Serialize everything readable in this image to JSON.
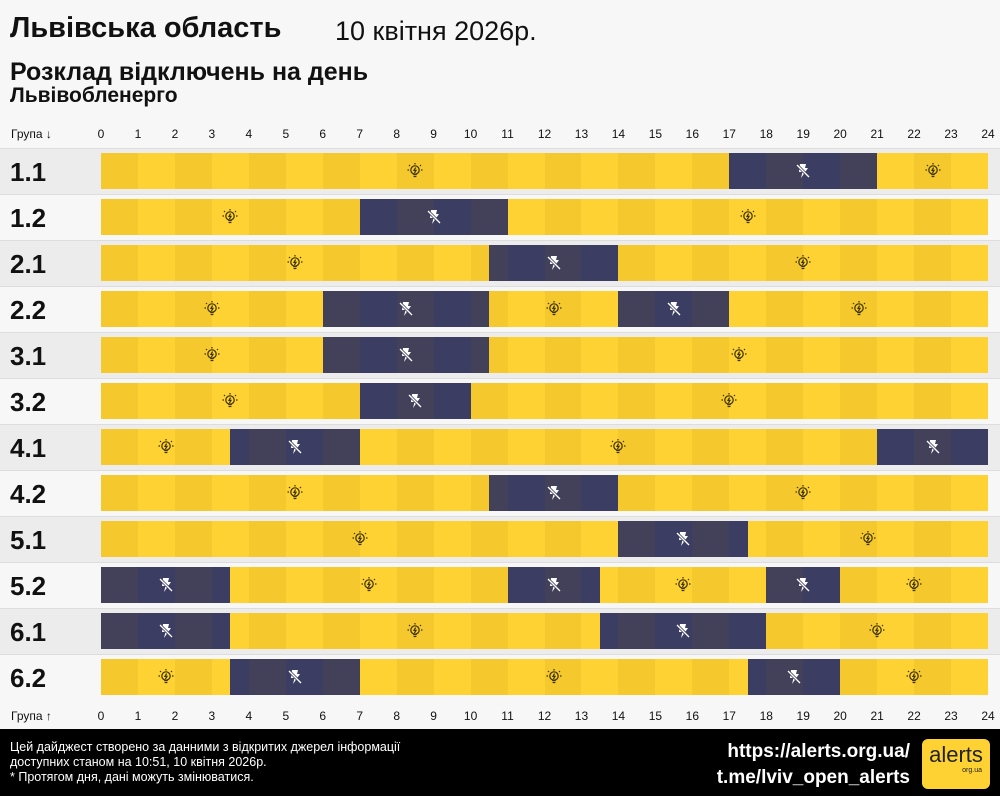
{
  "header": {
    "region": "Львівська область",
    "date": "10 квітня 2026р.",
    "subtitle": "Розклад відключень на день",
    "provider": "Львівобленерго"
  },
  "axis": {
    "top_label": "Група ↓",
    "bottom_label": "Група ↑",
    "ticks": [
      "0",
      "1",
      "2",
      "3",
      "4",
      "5",
      "6",
      "7",
      "8",
      "9",
      "10",
      "11",
      "12",
      "13",
      "14",
      "15",
      "16",
      "17",
      "18",
      "19",
      "20",
      "21",
      "22",
      "23",
      "24"
    ]
  },
  "colors": {
    "power_on": "#fed232",
    "power_off": "#3b3d63"
  },
  "groups": [
    {
      "name": "1.1",
      "outages": [
        [
          17,
          21
        ]
      ]
    },
    {
      "name": "1.2",
      "outages": [
        [
          7,
          11
        ]
      ]
    },
    {
      "name": "2.1",
      "outages": [
        [
          10.5,
          14
        ]
      ]
    },
    {
      "name": "2.2",
      "outages": [
        [
          6,
          10.5
        ],
        [
          14,
          17
        ]
      ]
    },
    {
      "name": "3.1",
      "outages": [
        [
          6,
          10.5
        ]
      ]
    },
    {
      "name": "3.2",
      "outages": [
        [
          7,
          10
        ]
      ]
    },
    {
      "name": "4.1",
      "outages": [
        [
          3.5,
          7
        ],
        [
          21,
          24
        ]
      ]
    },
    {
      "name": "4.2",
      "outages": [
        [
          10.5,
          14
        ]
      ]
    },
    {
      "name": "5.1",
      "outages": [
        [
          14,
          17.5
        ]
      ]
    },
    {
      "name": "5.2",
      "outages": [
        [
          0,
          3.5
        ],
        [
          11,
          13.5
        ],
        [
          18,
          20
        ]
      ]
    },
    {
      "name": "6.1",
      "outages": [
        [
          0,
          3.5
        ],
        [
          13.5,
          18
        ]
      ]
    },
    {
      "name": "6.2",
      "outages": [
        [
          3.5,
          7
        ],
        [
          17.5,
          20
        ]
      ]
    }
  ],
  "footer": {
    "line1": "Цей дайджест створено за данними з відкритих джерел інформації",
    "line2": "доступних станом на 10:51, 10 квітня 2026р.",
    "line3": "* Протягом дня, дані можуть змінюватися.",
    "url": "https://alerts.org.ua/",
    "telegram": "t.me/lviv_open_alerts",
    "logo": "alerts",
    "logo_sub": "org.ua"
  }
}
